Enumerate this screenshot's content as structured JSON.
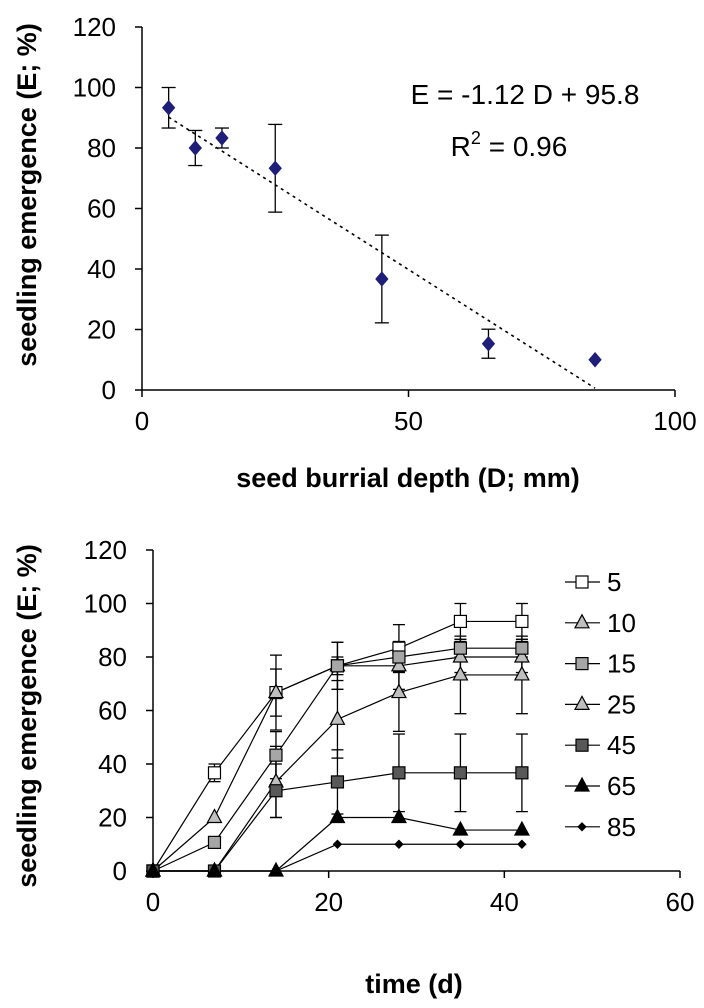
{
  "chart_data": [
    {
      "type": "scatter",
      "xlabel": "seed burrial depth (D; mm)",
      "ylabel": "seedling emergence (E; %)",
      "xlim": [
        0,
        100
      ],
      "ylim": [
        0,
        120
      ],
      "xticks": [
        "0",
        "50",
        "100"
      ],
      "yticks": [
        "0",
        "20",
        "40",
        "60",
        "80",
        "100",
        "120"
      ],
      "points": [
        {
          "x": 5,
          "y": 93.3,
          "err": 6.7
        },
        {
          "x": 10,
          "y": 80,
          "err": 5.8
        },
        {
          "x": 15,
          "y": 83.3,
          "err": 3.3
        },
        {
          "x": 25,
          "y": 73.3,
          "err": 14.5
        },
        {
          "x": 45,
          "y": 36.7,
          "err": 14.5
        },
        {
          "x": 65,
          "y": 15.3,
          "err": 4.8
        },
        {
          "x": 85,
          "y": 10,
          "err": 0
        }
      ],
      "trendline": {
        "slope": -1.12,
        "intercept": 95.8,
        "x_range": [
          5,
          85
        ]
      },
      "annotation": {
        "equation": "E = -1.12 D + 95.8",
        "r2_prefix": "R",
        "r2_sup": "2",
        "r2_suffix": " = 0.96"
      },
      "marker_color": "#1f1f7a",
      "grid": false
    },
    {
      "type": "line",
      "xlabel": "time (d)",
      "ylabel": "seedling emergence (E; %)",
      "xlim": [
        0,
        60
      ],
      "ylim": [
        0,
        120
      ],
      "xticks": [
        "0",
        "20",
        "40",
        "60"
      ],
      "yticks": [
        "0",
        "20",
        "40",
        "60",
        "80",
        "100",
        "120"
      ],
      "legend_position": "right",
      "grid": false,
      "x": [
        0,
        7,
        14,
        21,
        28,
        35,
        42
      ],
      "series": [
        {
          "name": "5",
          "marker": "square-open",
          "values": [
            0,
            36.7,
            66.7,
            76.7,
            83.3,
            93.3,
            93.3
          ],
          "errors": [
            0,
            3.3,
            14,
            8.8,
            8.8,
            6.7,
            6.7
          ]
        },
        {
          "name": "10",
          "marker": "triangle-gray",
          "values": [
            0,
            20,
            66.7,
            76.7,
            76.7,
            80,
            80
          ],
          "errors": [
            0,
            0,
            8.8,
            8.8,
            8.8,
            5.8,
            5.8
          ]
        },
        {
          "name": "15",
          "marker": "square-gray",
          "values": [
            0,
            10.7,
            43.3,
            76.7,
            80,
            83.3,
            83.3
          ],
          "errors": [
            0,
            0,
            8.8,
            3.3,
            5.8,
            3.3,
            3.3
          ]
        },
        {
          "name": "25",
          "marker": "triangle-gray",
          "values": [
            0,
            0,
            33.3,
            56.7,
            66.7,
            73.3,
            73.3
          ],
          "errors": [
            0,
            0,
            13.3,
            14.5,
            14.5,
            14.5,
            14.5
          ]
        },
        {
          "name": "45",
          "marker": "square-dark",
          "values": [
            0,
            0,
            30,
            33.3,
            36.7,
            36.7,
            36.7
          ],
          "errors": [
            0,
            0,
            10,
            12,
            14.5,
            14.5,
            14.5
          ]
        },
        {
          "name": "65",
          "marker": "triangle-black",
          "values": [
            0,
            0,
            0,
            20,
            20,
            15.3,
            15.3
          ],
          "errors": [
            0,
            0,
            0,
            0,
            0,
            0,
            0
          ]
        },
        {
          "name": "85",
          "marker": "diamond-small",
          "values": [
            0,
            0,
            0,
            10,
            10,
            10,
            10
          ],
          "errors": [
            0,
            0,
            0,
            0,
            0,
            0,
            0
          ]
        }
      ]
    }
  ]
}
